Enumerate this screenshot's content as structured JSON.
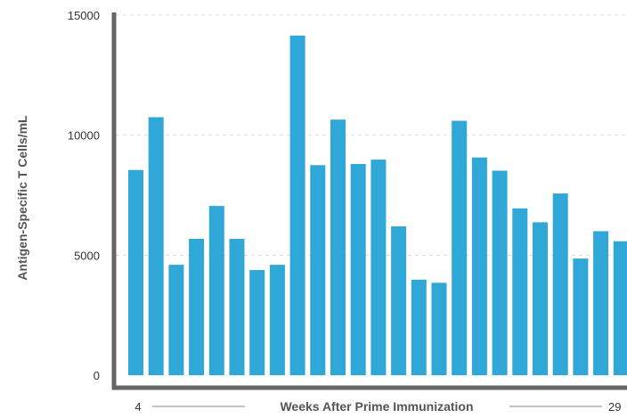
{
  "chart_data": {
    "type": "bar",
    "title": "",
    "xlabel": "Weeks After Prime Immunization",
    "ylabel": "Antigen-Specific T Cells/mL",
    "x_start_label": "4",
    "x_end_label": "29",
    "ylim": [
      0,
      15000
    ],
    "yticks": [
      0,
      5000,
      10000,
      15000
    ],
    "grid": true,
    "bar_color": "#2fa8d8",
    "axis_color": "#666666",
    "values": [
      8550,
      10750,
      4600,
      5680,
      7050,
      5680,
      4380,
      4600,
      14150,
      8750,
      10650,
      8800,
      8980,
      6200,
      3980,
      3850,
      10600,
      9070,
      8520,
      6950,
      6370,
      7570,
      4860,
      6000,
      5580
    ]
  }
}
